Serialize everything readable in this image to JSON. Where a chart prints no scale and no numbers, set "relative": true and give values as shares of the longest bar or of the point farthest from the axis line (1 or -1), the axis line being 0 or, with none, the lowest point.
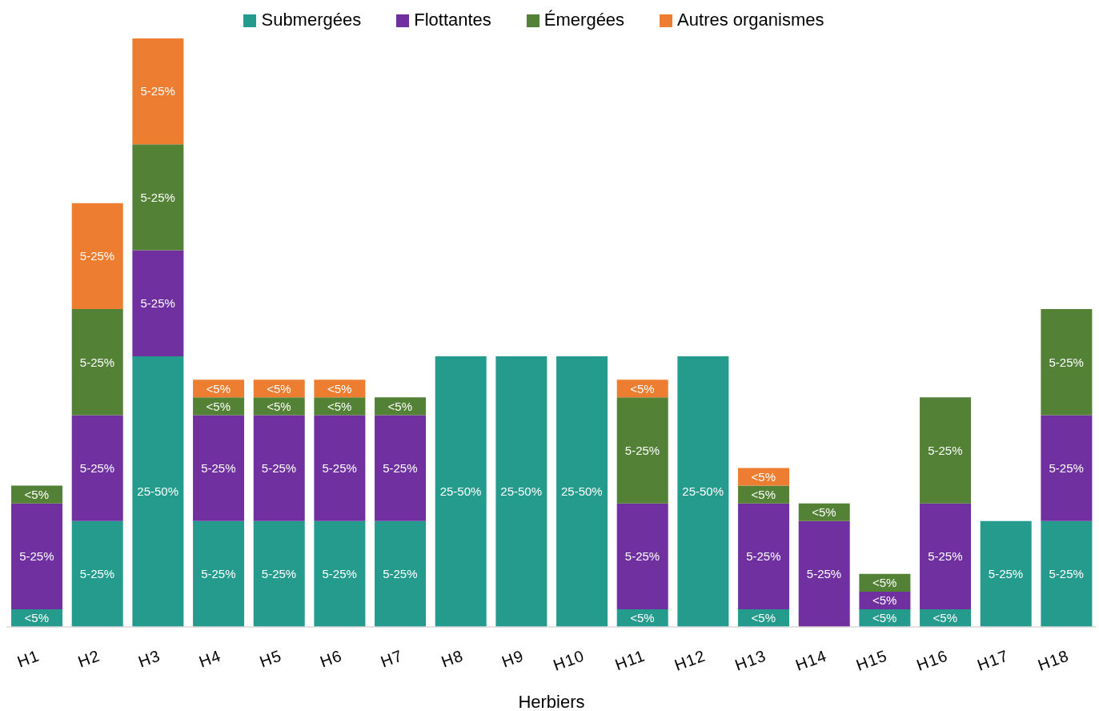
{
  "chart_data": {
    "type": "bar",
    "stacked": true,
    "relative": true,
    "xlabel": "Herbiers",
    "legend": "top",
    "categories": [
      "H1",
      "H2",
      "H3",
      "H4",
      "H5",
      "H6",
      "H7",
      "H8",
      "H9",
      "H10",
      "H11",
      "H12",
      "H13",
      "H14",
      "H15",
      "H16",
      "H17",
      "H18"
    ],
    "series": [
      {
        "name": "Submergées",
        "color": "#259b8e",
        "values": [
          0.03,
          0.18,
          0.46,
          0.18,
          0.18,
          0.18,
          0.18,
          0.46,
          0.46,
          0.46,
          0.03,
          0.46,
          0.03,
          null,
          0.03,
          0.03,
          0.18,
          0.18
        ]
      },
      {
        "name": "Flottantes",
        "color": "#7030a0",
        "values": [
          0.18,
          0.18,
          0.18,
          0.18,
          0.18,
          0.18,
          0.18,
          null,
          null,
          null,
          0.18,
          null,
          0.18,
          0.18,
          0.03,
          0.18,
          null,
          0.18
        ]
      },
      {
        "name": "Émergées",
        "color": "#538135",
        "values": [
          0.03,
          0.18,
          0.18,
          0.03,
          0.03,
          0.03,
          0.03,
          null,
          null,
          null,
          0.18,
          null,
          0.03,
          0.03,
          0.03,
          0.18,
          null,
          0.18
        ]
      },
      {
        "name": "Autres organismes",
        "color": "#ed7d31",
        "values": [
          null,
          0.18,
          0.18,
          0.03,
          0.03,
          0.03,
          null,
          null,
          null,
          null,
          0.03,
          null,
          0.03,
          null,
          null,
          null,
          null,
          null
        ]
      }
    ],
    "annotations": [
      "<5%",
      "5-25%",
      "<5%",
      "5-25%",
      "5-25%",
      "5-25%",
      "5-25%",
      "25-50%",
      "5-25%",
      "5-25%",
      "5-25%",
      "5-25%",
      "5-25%",
      "<5%",
      "<5%",
      "5-25%",
      "5-25%",
      "<5%",
      "<5%",
      "5-25%",
      "5-25%",
      "<5%",
      "<5%",
      "5-25%",
      "5-25%",
      "<5%",
      "25-50%",
      "25-50%",
      "25-50%",
      "<5%",
      "5-25%",
      "5-25%",
      "<5%",
      "25-50%",
      "<5%",
      "5-25%",
      "<5%",
      "<5%",
      "5-25%",
      "<5%",
      "<5%",
      "<5%",
      "<5%",
      "<5%",
      "5-25%",
      "5-25%",
      "5-25%",
      "5-25%",
      "5-25%",
      "5-25%"
    ]
  }
}
